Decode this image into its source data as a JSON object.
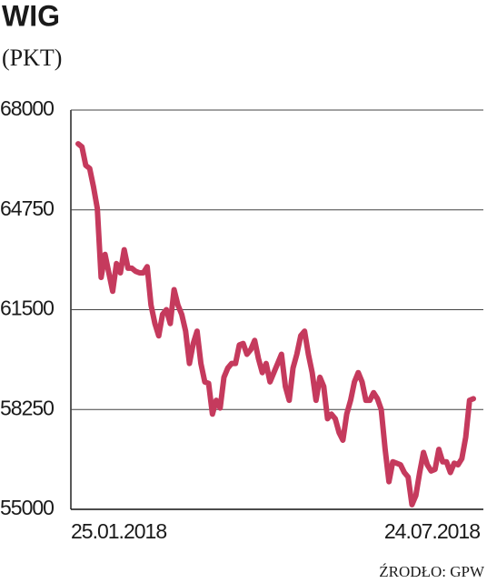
{
  "chart_data": {
    "type": "line",
    "title": "WIG",
    "subtitle": "(PKT)",
    "source": "ŹRODŁO: GPW",
    "categories": [
      "25.01.2018",
      null,
      null,
      null,
      null,
      null,
      null,
      null,
      null,
      null,
      null,
      null,
      null,
      null,
      null,
      null,
      null,
      null,
      null,
      null,
      null,
      null,
      null,
      null,
      null,
      null,
      null,
      null,
      null,
      null,
      null,
      null,
      null,
      null,
      null,
      null,
      null,
      null,
      null,
      null,
      null,
      null,
      null,
      null,
      null,
      null,
      null,
      null,
      null,
      null,
      null,
      null,
      null,
      null,
      null,
      null,
      null,
      null,
      null,
      null,
      null,
      null,
      null,
      null,
      null,
      null,
      null,
      null,
      null,
      null,
      null,
      null,
      null,
      null,
      null,
      null,
      null,
      null,
      null,
      null,
      null,
      null,
      null,
      null,
      null,
      null,
      null,
      null,
      null,
      null,
      null,
      null,
      null,
      null,
      null,
      null,
      null,
      null,
      null,
      null,
      null,
      null,
      null,
      "24.07.2018"
    ],
    "series": [
      {
        "name": "WIG",
        "color": "#c53a5d",
        "values": [
          66900,
          66800,
          66200,
          66100,
          65500,
          64800,
          62550,
          63300,
          62700,
          62100,
          63000,
          62700,
          63450,
          62850,
          62850,
          62750,
          62700,
          62700,
          62900,
          61650,
          61050,
          60650,
          61350,
          61500,
          61050,
          62150,
          61650,
          61350,
          60800,
          59750,
          60400,
          60800,
          59750,
          59150,
          59100,
          58100,
          58550,
          58300,
          59300,
          59600,
          59750,
          59750,
          60350,
          60400,
          60050,
          60200,
          60500,
          59900,
          59450,
          59750,
          59150,
          59450,
          59750,
          60050,
          59000,
          58550,
          59600,
          60050,
          60650,
          60800,
          60050,
          59450,
          58550,
          59300,
          59000,
          57950,
          58100,
          57950,
          57500,
          57250,
          58100,
          58550,
          59150,
          59450,
          59150,
          58550,
          58550,
          58800,
          58600,
          58250,
          56950,
          55900,
          56550,
          56500,
          56450,
          56200,
          56050,
          55150,
          55450,
          56200,
          56850,
          56450,
          56250,
          56300,
          56950,
          56550,
          56550,
          56200,
          56500,
          56450,
          56650,
          57350,
          58550,
          58600
        ]
      }
    ],
    "ylim": [
      55000,
      68000
    ],
    "yticks": [
      55000,
      58250,
      61500,
      64750,
      68000
    ],
    "grid": true
  }
}
